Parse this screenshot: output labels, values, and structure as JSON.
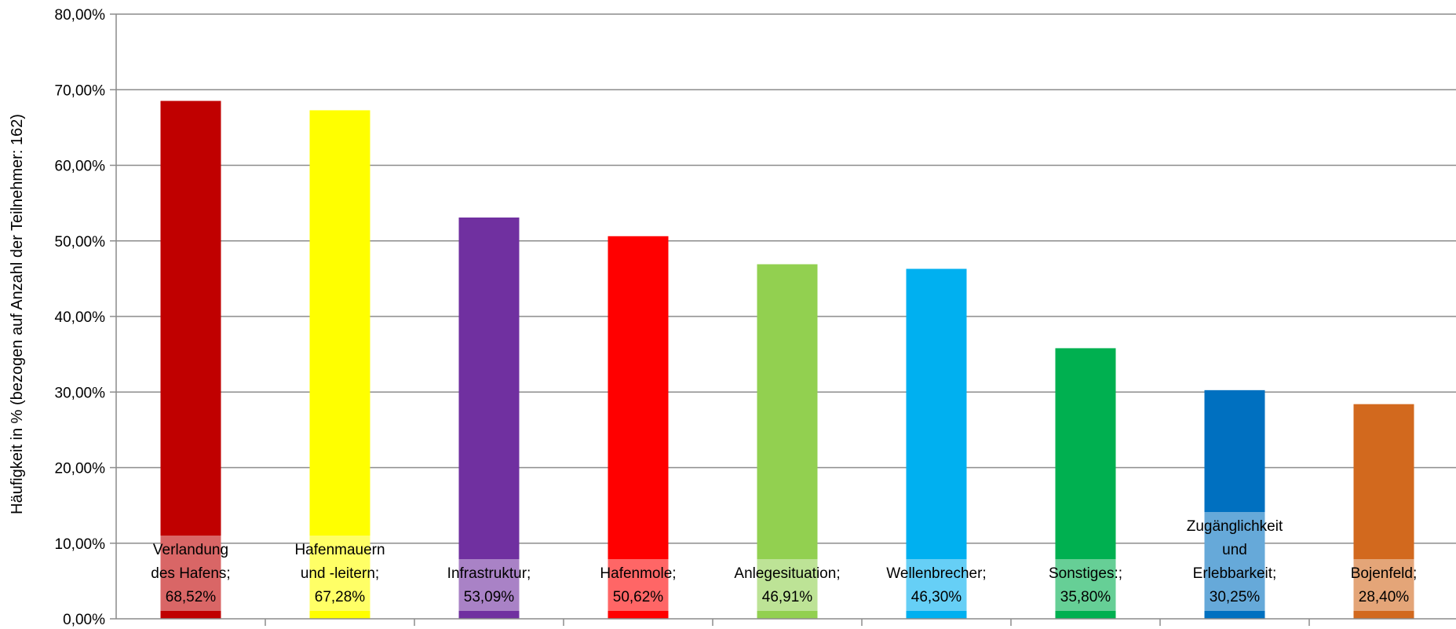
{
  "chart_data": {
    "type": "bar",
    "title": "",
    "xlabel": "",
    "ylabel": "Häufigkeit in % (bezogen auf Anzahl der Teilnehmer: 162)",
    "ylim": [
      0,
      80
    ],
    "yticks": [
      "0,00%",
      "10,00%",
      "20,00%",
      "30,00%",
      "40,00%",
      "50,00%",
      "60,00%",
      "70,00%",
      "80,00%"
    ],
    "grid": true,
    "legend": "none",
    "categories": [
      "Verlandung des Hafens",
      "Hafenmauern und -leitern",
      "Infrastruktur",
      "Hafenmole",
      "Anlegesituation",
      "Wellenbrecher",
      "Sonstiges:",
      "Zugänglichkeit und Erlebbarkeit",
      "Bojenfeld"
    ],
    "values": [
      68.52,
      67.28,
      53.09,
      50.62,
      46.91,
      46.3,
      35.8,
      30.25,
      28.4
    ],
    "data_labels": [
      [
        "Verlandung",
        "des Hafens;",
        "68,52%"
      ],
      [
        "Hafenmauern",
        "und -leitern;",
        "67,28%"
      ],
      [
        "Infrastruktur;",
        "53,09%"
      ],
      [
        "Hafenmole;",
        "50,62%"
      ],
      [
        "Anlegesituation;",
        "46,91%"
      ],
      [
        "Wellenbrecher;",
        "46,30%"
      ],
      [
        "Sonstiges:;",
        "35,80%"
      ],
      [
        "Zugänglichkeit",
        "und",
        "Erlebbarkeit;",
        "30,25%"
      ],
      [
        "Bojenfeld;",
        "28,40%"
      ]
    ],
    "colors": [
      "#C00000",
      "#FFFF00",
      "#7030A0",
      "#FF0000",
      "#92D050",
      "#00B0F0",
      "#00B050",
      "#0070C0",
      "#D2691E"
    ]
  }
}
